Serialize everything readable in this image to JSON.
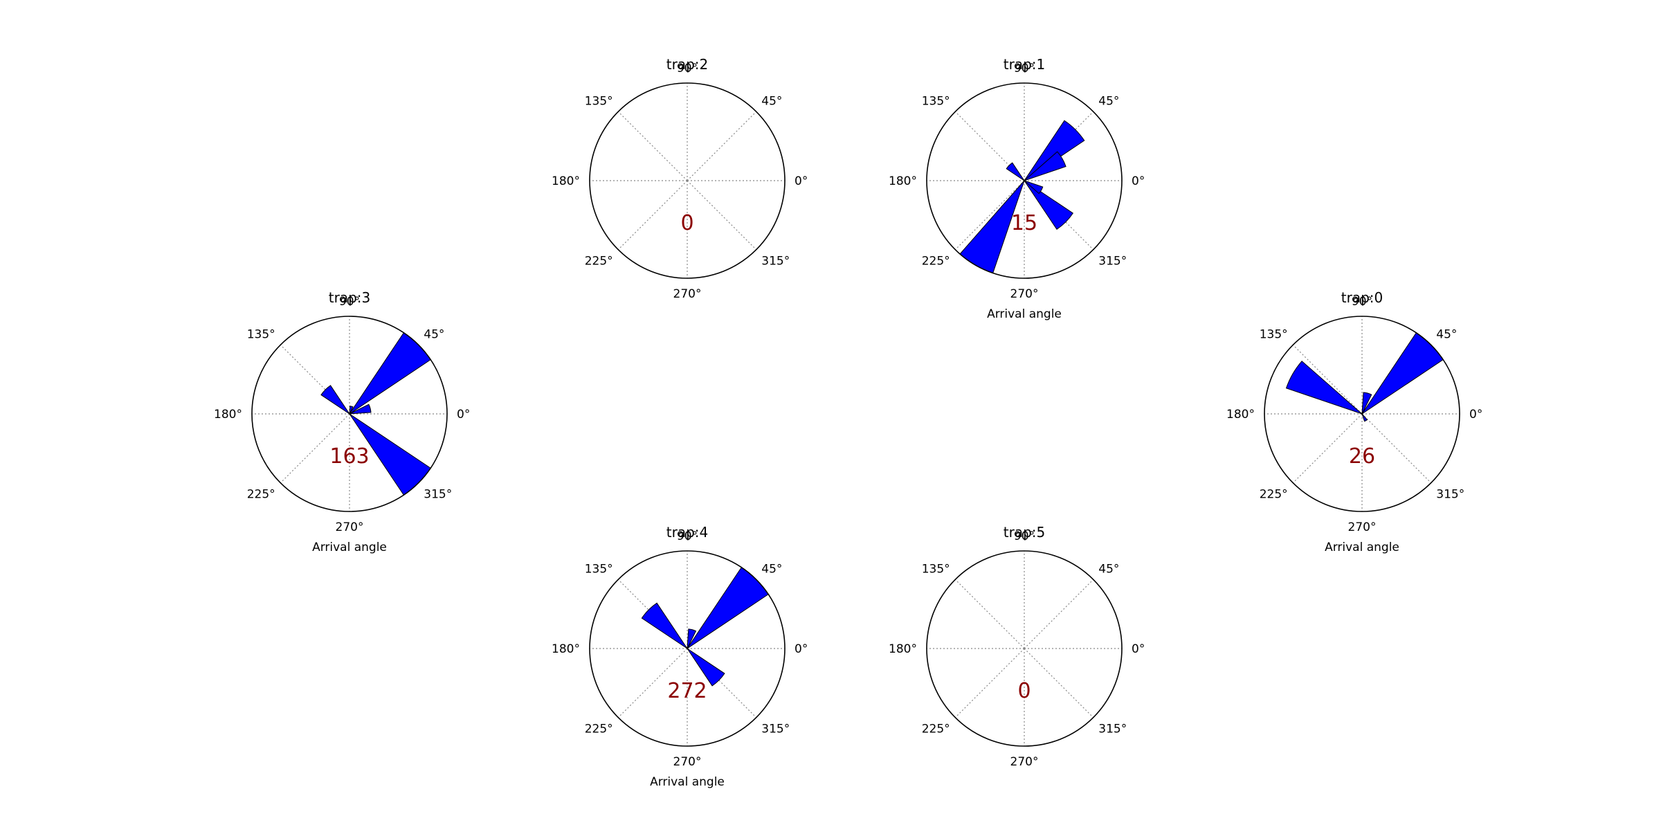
{
  "figure": {
    "tick_labels": [
      "0°",
      "45°",
      "90°",
      "135°",
      "180°",
      "225°",
      "270°",
      "315°"
    ],
    "colors": {
      "bar_fill": "#0000ff",
      "count_text": "#8b0000",
      "grid": "#888888",
      "frame": "#000000"
    }
  },
  "chart_data": [
    {
      "type": "polar-bar",
      "title": "trap:2",
      "count": "0",
      "xlabel": "",
      "grid": true,
      "bins": []
    },
    {
      "type": "polar-bar",
      "title": "trap:1",
      "count": "15",
      "xlabel": "Arrival angle",
      "grid": true,
      "bins": [
        {
          "angle": 45,
          "value": 0.74
        },
        {
          "angle": 30,
          "value": 0.45
        },
        {
          "angle": 135,
          "value": 0.22
        },
        {
          "angle": 240,
          "value": 1.0
        },
        {
          "angle": 315,
          "value": 0.6
        },
        {
          "angle": 330,
          "value": 0.2
        }
      ]
    },
    {
      "type": "polar-bar",
      "title": "trap:3",
      "count": "163",
      "xlabel": "Arrival angle",
      "grid": true,
      "bins": [
        {
          "angle": 45,
          "value": 1.0
        },
        {
          "angle": 15,
          "value": 0.22
        },
        {
          "angle": 75,
          "value": 0.08
        },
        {
          "angle": 135,
          "value": 0.35
        },
        {
          "angle": 315,
          "value": 1.0
        }
      ]
    },
    {
      "type": "polar-bar",
      "title": "trap:0",
      "count": "26",
      "xlabel": "Arrival angle",
      "grid": true,
      "bins": [
        {
          "angle": 45,
          "value": 1.0
        },
        {
          "angle": 75,
          "value": 0.22
        },
        {
          "angle": 150,
          "value": 0.82
        },
        {
          "angle": 300,
          "value": 0.08
        }
      ]
    },
    {
      "type": "polar-bar",
      "title": "trap:4",
      "count": "272",
      "xlabel": "Arrival angle",
      "grid": true,
      "bins": [
        {
          "angle": 45,
          "value": 1.0
        },
        {
          "angle": 75,
          "value": 0.2
        },
        {
          "angle": 135,
          "value": 0.56
        },
        {
          "angle": 315,
          "value": 0.46
        }
      ]
    },
    {
      "type": "polar-bar",
      "title": "trap:5",
      "count": "0",
      "xlabel": "",
      "grid": true,
      "bins": []
    }
  ]
}
